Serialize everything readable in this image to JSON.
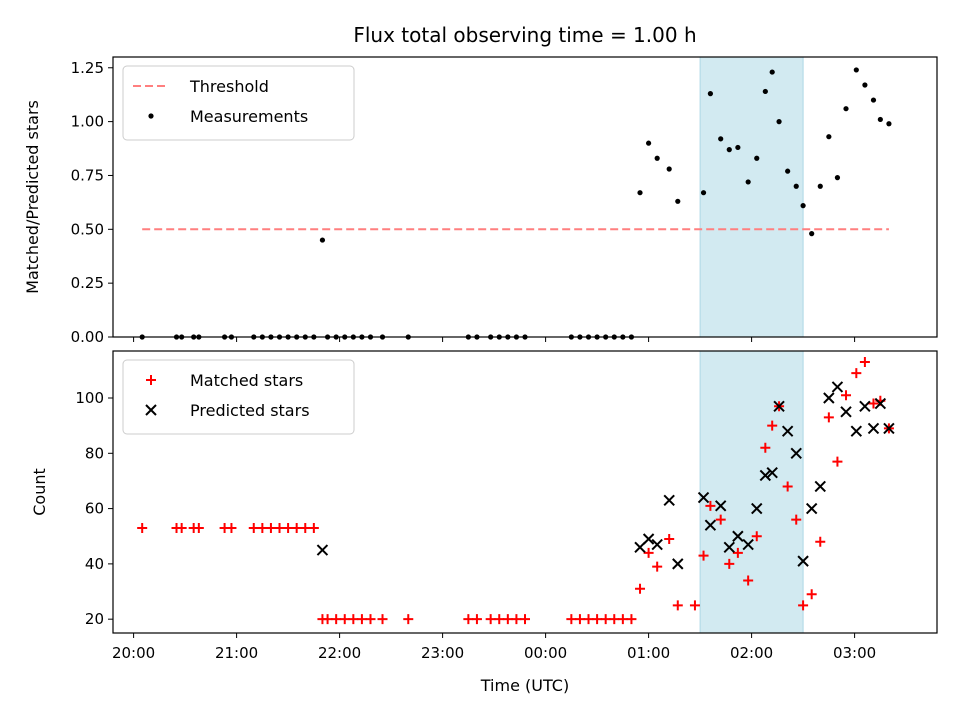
{
  "title": "Flux total observing time = 1.00 h",
  "chart_data": [
    {
      "type": "scatter",
      "panel": "top",
      "ylabel": "Matched/Predicted stars",
      "ylim": [
        0,
        1.3
      ],
      "yticks": [
        0.0,
        0.25,
        0.5,
        0.75,
        1.0,
        1.25
      ],
      "ytick_labels": [
        "0.00",
        "0.25",
        "0.50",
        "0.75",
        "1.00",
        "1.25"
      ],
      "threshold": {
        "name": "Threshold",
        "value": 0.5,
        "x_start": "20:05",
        "x_end": "03:20",
        "color": "#ff7f7f"
      },
      "highlight_span": {
        "start": "01:30",
        "end": "02:30",
        "color": "#add8e6"
      },
      "series": [
        {
          "name": "Measurements",
          "color": "#000000",
          "points": [
            [
              "20:05",
              0
            ],
            [
              "20:25",
              0
            ],
            [
              "20:28",
              0
            ],
            [
              "20:35",
              0
            ],
            [
              "20:38",
              0
            ],
            [
              "20:53",
              0
            ],
            [
              "20:57",
              0
            ],
            [
              "21:10",
              0
            ],
            [
              "21:15",
              0
            ],
            [
              "21:20",
              0
            ],
            [
              "21:25",
              0
            ],
            [
              "21:30",
              0
            ],
            [
              "21:35",
              0
            ],
            [
              "21:40",
              0
            ],
            [
              "21:45",
              0
            ],
            [
              "21:50",
              0.45
            ],
            [
              "21:53",
              0
            ],
            [
              "21:58",
              0
            ],
            [
              "22:03",
              0
            ],
            [
              "22:08",
              0
            ],
            [
              "22:13",
              0
            ],
            [
              "22:18",
              0
            ],
            [
              "22:25",
              0
            ],
            [
              "22:40",
              0
            ],
            [
              "23:15",
              0
            ],
            [
              "23:20",
              0
            ],
            [
              "23:28",
              0
            ],
            [
              "23:33",
              0
            ],
            [
              "23:38",
              0
            ],
            [
              "23:43",
              0
            ],
            [
              "23:48",
              0
            ],
            [
              "24:15",
              0
            ],
            [
              "24:20",
              0
            ],
            [
              "24:25",
              0
            ],
            [
              "24:30",
              0
            ],
            [
              "24:35",
              0
            ],
            [
              "24:40",
              0
            ],
            [
              "24:45",
              0
            ],
            [
              "24:50",
              0
            ],
            [
              "24:55",
              0.67
            ],
            [
              "25:00",
              0.9
            ],
            [
              "25:05",
              0.83
            ],
            [
              "25:12",
              0.78
            ],
            [
              "25:17",
              0.63
            ],
            [
              "25:32",
              0.67
            ],
            [
              "25:36",
              1.13
            ],
            [
              "25:42",
              0.92
            ],
            [
              "25:47",
              0.87
            ],
            [
              "25:52",
              0.88
            ],
            [
              "25:58",
              0.72
            ],
            [
              "26:03",
              0.83
            ],
            [
              "26:08",
              1.14
            ],
            [
              "26:12",
              1.23
            ],
            [
              "26:16",
              1.0
            ],
            [
              "26:21",
              0.77
            ],
            [
              "26:26",
              0.7
            ],
            [
              "26:30",
              0.61
            ],
            [
              "26:35",
              0.48
            ],
            [
              "26:40",
              0.7
            ],
            [
              "26:45",
              0.93
            ],
            [
              "26:50",
              0.74
            ],
            [
              "26:55",
              1.06
            ],
            [
              "27:01",
              1.24
            ],
            [
              "27:06",
              1.17
            ],
            [
              "27:11",
              1.1
            ],
            [
              "27:15",
              1.01
            ],
            [
              "27:20",
              0.99
            ]
          ]
        }
      ],
      "legend_placement": "upper-left"
    },
    {
      "type": "scatter",
      "panel": "bottom",
      "xlabel": "Time (UTC)",
      "ylabel": "Count",
      "ylim": [
        15,
        117
      ],
      "yticks": [
        20,
        40,
        60,
        80,
        100
      ],
      "ytick_labels": [
        "20",
        "40",
        "60",
        "80",
        "100"
      ],
      "xlim": [
        "19:48",
        "27:48"
      ],
      "xticks": [
        "20:00",
        "21:00",
        "22:00",
        "23:00",
        "24:00",
        "25:00",
        "26:00",
        "27:00"
      ],
      "xtick_labels": [
        "20:00",
        "21:00",
        "22:00",
        "23:00",
        "00:00",
        "01:00",
        "02:00",
        "03:00"
      ],
      "highlight_span": {
        "start": "01:30",
        "end": "02:30",
        "color": "#add8e6"
      },
      "series": [
        {
          "name": "Matched stars",
          "marker": "plus",
          "color": "#ff0000",
          "points": [
            [
              "20:05",
              53
            ],
            [
              "20:25",
              53
            ],
            [
              "20:28",
              53
            ],
            [
              "20:35",
              53
            ],
            [
              "20:38",
              53
            ],
            [
              "20:53",
              53
            ],
            [
              "20:57",
              53
            ],
            [
              "21:10",
              53
            ],
            [
              "21:15",
              53
            ],
            [
              "21:20",
              53
            ],
            [
              "21:25",
              53
            ],
            [
              "21:30",
              53
            ],
            [
              "21:35",
              53
            ],
            [
              "21:40",
              53
            ],
            [
              "21:45",
              53
            ],
            [
              "21:50",
              20
            ],
            [
              "21:53",
              20
            ],
            [
              "21:58",
              20
            ],
            [
              "22:03",
              20
            ],
            [
              "22:08",
              20
            ],
            [
              "22:13",
              20
            ],
            [
              "22:18",
              20
            ],
            [
              "22:25",
              20
            ],
            [
              "22:40",
              20
            ],
            [
              "23:15",
              20
            ],
            [
              "23:20",
              20
            ],
            [
              "23:28",
              20
            ],
            [
              "23:33",
              20
            ],
            [
              "23:38",
              20
            ],
            [
              "23:43",
              20
            ],
            [
              "23:48",
              20
            ],
            [
              "24:15",
              20
            ],
            [
              "24:20",
              20
            ],
            [
              "24:25",
              20
            ],
            [
              "24:30",
              20
            ],
            [
              "24:35",
              20
            ],
            [
              "24:40",
              20
            ],
            [
              "24:45",
              20
            ],
            [
              "24:50",
              20
            ],
            [
              "24:55",
              31
            ],
            [
              "25:00",
              44
            ],
            [
              "25:05",
              39
            ],
            [
              "25:12",
              49
            ],
            [
              "25:17",
              25
            ],
            [
              "25:27",
              25
            ],
            [
              "25:32",
              43
            ],
            [
              "25:36",
              61
            ],
            [
              "25:42",
              56
            ],
            [
              "25:47",
              40
            ],
            [
              "25:52",
              44
            ],
            [
              "25:58",
              34
            ],
            [
              "26:03",
              50
            ],
            [
              "26:08",
              82
            ],
            [
              "26:12",
              90
            ],
            [
              "26:16",
              97
            ],
            [
              "26:21",
              68
            ],
            [
              "26:26",
              56
            ],
            [
              "26:30",
              25
            ],
            [
              "26:35",
              29
            ],
            [
              "26:40",
              48
            ],
            [
              "26:45",
              93
            ],
            [
              "26:50",
              77
            ],
            [
              "26:55",
              101
            ],
            [
              "27:01",
              109
            ],
            [
              "27:06",
              113
            ],
            [
              "27:11",
              98
            ],
            [
              "27:15",
              99
            ],
            [
              "27:20",
              89
            ]
          ]
        },
        {
          "name": "Predicted stars",
          "marker": "x",
          "color": "#000000",
          "points": [
            [
              "21:50",
              45
            ],
            [
              "24:55",
              46
            ],
            [
              "25:00",
              49
            ],
            [
              "25:05",
              47
            ],
            [
              "25:12",
              63
            ],
            [
              "25:17",
              40
            ],
            [
              "25:32",
              64
            ],
            [
              "25:36",
              54
            ],
            [
              "25:42",
              61
            ],
            [
              "25:47",
              46
            ],
            [
              "25:52",
              50
            ],
            [
              "25:58",
              47
            ],
            [
              "26:03",
              60
            ],
            [
              "26:08",
              72
            ],
            [
              "26:12",
              73
            ],
            [
              "26:16",
              97
            ],
            [
              "26:21",
              88
            ],
            [
              "26:26",
              80
            ],
            [
              "26:30",
              41
            ],
            [
              "26:35",
              60
            ],
            [
              "26:40",
              68
            ],
            [
              "26:45",
              100
            ],
            [
              "26:50",
              104
            ],
            [
              "26:55",
              95
            ],
            [
              "27:01",
              88
            ],
            [
              "27:06",
              97
            ],
            [
              "27:11",
              89
            ],
            [
              "27:15",
              98
            ],
            [
              "27:20",
              89
            ]
          ]
        }
      ],
      "legend_placement": "upper-left"
    }
  ]
}
